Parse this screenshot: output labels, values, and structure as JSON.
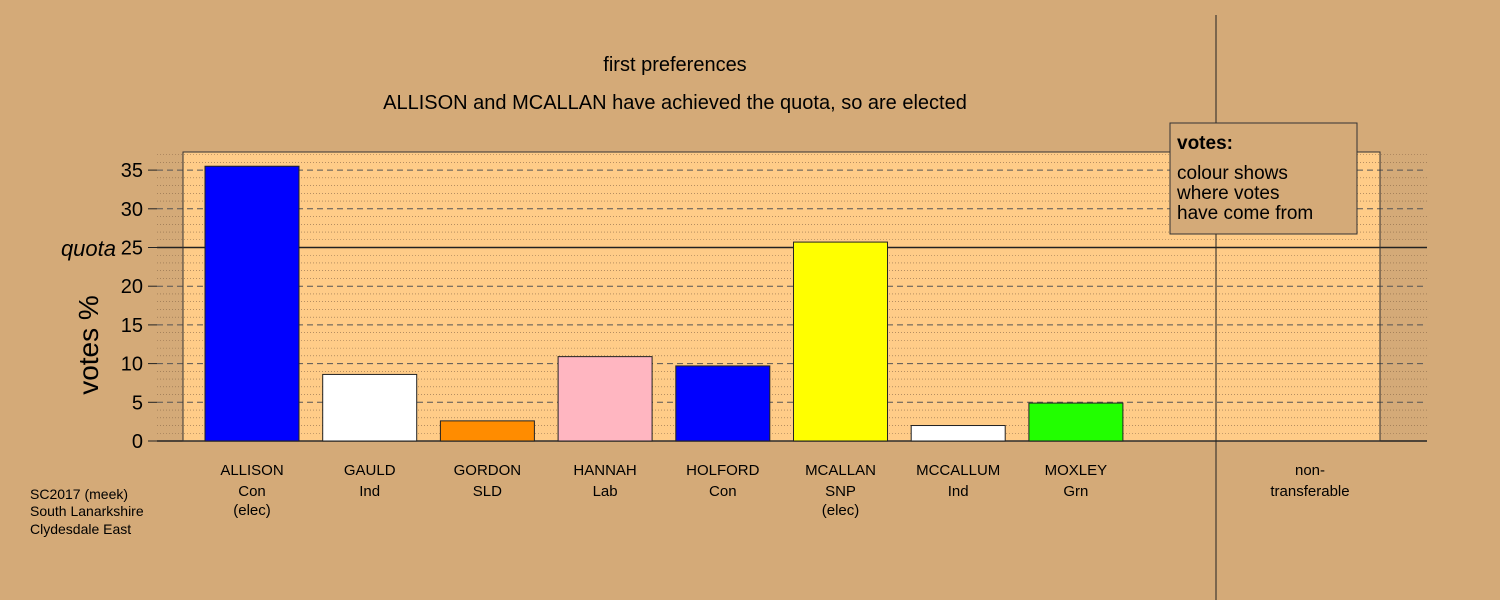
{
  "chart_data": {
    "type": "bar",
    "title": "first preferences",
    "subtitle": "ALLISON and MCALLAN have achieved the quota, so are elected",
    "ylabel": "votes %",
    "ylim": [
      0,
      37
    ],
    "yticks": [
      0,
      5,
      10,
      15,
      20,
      25,
      30,
      35
    ],
    "quota": 25,
    "quota_label": "quota",
    "grid": true,
    "categories": [
      {
        "name": "ALLISON",
        "party": "Con",
        "note": "(elec)",
        "value": 35.5,
        "color": "#0000ff"
      },
      {
        "name": "GAULD",
        "party": "Ind",
        "note": "",
        "value": 8.6,
        "color": "#ffffff"
      },
      {
        "name": "GORDON",
        "party": "SLD",
        "note": "",
        "value": 2.6,
        "color": "#ff8c00"
      },
      {
        "name": "HANNAH",
        "party": "Lab",
        "note": "",
        "value": 10.9,
        "color": "#ffb6c1"
      },
      {
        "name": "HOLFORD",
        "party": "Con",
        "note": "",
        "value": 9.7,
        "color": "#0000ff"
      },
      {
        "name": "MCALLAN",
        "party": "SNP",
        "note": "(elec)",
        "value": 25.7,
        "color": "#ffff00"
      },
      {
        "name": "MCCALLUM",
        "party": "Ind",
        "note": "",
        "value": 2.0,
        "color": "#ffffff"
      },
      {
        "name": "MOXLEY",
        "party": "Grn",
        "note": "",
        "value": 4.9,
        "color": "#22ff00"
      }
    ],
    "nontransferable": {
      "label_line1": "non-",
      "label_line2": "transferable",
      "value": 0
    },
    "legend": {
      "position": "top-right",
      "title": "votes:",
      "lines": [
        "colour shows",
        "where votes",
        "have come from"
      ]
    }
  },
  "footer": {
    "lines": [
      "SC2017 (meek)",
      "South Lanarkshire",
      "Clydesdale East"
    ]
  },
  "colors": {
    "background": "#d4aa78",
    "plot_area": "#ffcc88",
    "legend_box": "#d4aa78"
  }
}
